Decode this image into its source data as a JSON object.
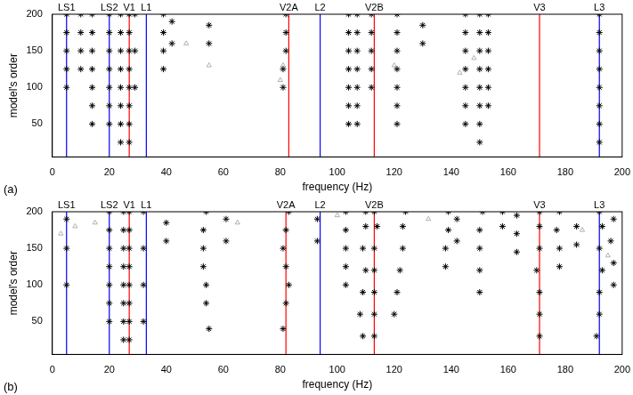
{
  "chart_data": [
    {
      "type": "scatter",
      "panel_label": "(a)",
      "x_label": "frequency (Hz)",
      "y_label": "model's order",
      "xlim": [
        0,
        200
      ],
      "xticks": [
        0,
        20,
        40,
        60,
        80,
        100,
        120,
        140,
        160,
        180,
        200
      ],
      "ylim": [
        5,
        200
      ],
      "yticks": [
        50,
        100,
        150,
        200
      ],
      "grid": false,
      "modes": [
        {
          "label": "LS1",
          "x": 5,
          "color": "#0000ff"
        },
        {
          "label": "LS2",
          "x": 20,
          "color": "#0000ff"
        },
        {
          "label": "V1",
          "x": 27,
          "color": "#ff0000"
        },
        {
          "label": "L1",
          "x": 33,
          "color": "#0000ff"
        },
        {
          "label": "V2A",
          "x": 83,
          "color": "#ff0000"
        },
        {
          "label": "L2",
          "x": 94,
          "color": "#0000ff"
        },
        {
          "label": "V2B",
          "x": 113,
          "color": "#ff0000"
        },
        {
          "label": "V3",
          "x": 171,
          "color": "#ff0000"
        },
        {
          "label": "L3",
          "x": 192,
          "color": "#0000ff"
        }
      ],
      "series": [
        {
          "color": "#000000",
          "marker": "star",
          "points": [
            [
              5,
              100
            ],
            [
              5,
              125
            ],
            [
              5,
              150
            ],
            [
              5,
              175
            ],
            [
              5,
              200
            ],
            [
              10,
              125
            ],
            [
              10,
              150
            ],
            [
              10,
              175
            ],
            [
              10,
              200
            ],
            [
              14,
              50
            ],
            [
              14,
              75
            ],
            [
              14,
              100
            ],
            [
              14,
              125
            ],
            [
              14,
              150
            ],
            [
              14,
              175
            ],
            [
              14,
              200
            ],
            [
              20,
              50
            ],
            [
              20,
              75
            ],
            [
              20,
              100
            ],
            [
              20,
              125
            ],
            [
              20,
              150
            ],
            [
              20,
              175
            ],
            [
              20,
              200
            ],
            [
              24,
              25
            ],
            [
              24,
              50
            ],
            [
              24,
              75
            ],
            [
              24,
              100
            ],
            [
              24,
              125
            ],
            [
              24,
              150
            ],
            [
              24,
              175
            ],
            [
              24,
              200
            ],
            [
              27,
              25
            ],
            [
              27,
              50
            ],
            [
              27,
              75
            ],
            [
              27,
              100
            ],
            [
              27,
              125
            ],
            [
              27,
              150
            ],
            [
              27,
              175
            ],
            [
              27,
              200
            ],
            [
              29,
              100
            ],
            [
              29,
              150
            ],
            [
              29,
              200
            ],
            [
              39,
              125
            ],
            [
              39,
              150
            ],
            [
              39,
              175
            ],
            [
              39,
              200
            ],
            [
              42,
              160
            ],
            [
              42,
              190
            ],
            [
              55,
              160
            ],
            [
              55,
              185
            ],
            [
              81,
              100
            ],
            [
              81,
              125
            ],
            [
              82,
              150
            ],
            [
              82,
              175
            ],
            [
              82,
              200
            ],
            [
              104,
              50
            ],
            [
              104,
              75
            ],
            [
              104,
              100
            ],
            [
              104,
              125
            ],
            [
              104,
              150
            ],
            [
              104,
              175
            ],
            [
              104,
              200
            ],
            [
              107,
              50
            ],
            [
              107,
              75
            ],
            [
              107,
              100
            ],
            [
              107,
              125
            ],
            [
              107,
              150
            ],
            [
              107,
              175
            ],
            [
              107,
              200
            ],
            [
              112,
              100
            ],
            [
              112,
              125
            ],
            [
              112,
              150
            ],
            [
              112,
              175
            ],
            [
              112,
              200
            ],
            [
              121,
              50
            ],
            [
              121,
              75
            ],
            [
              121,
              100
            ],
            [
              121,
              125
            ],
            [
              121,
              150
            ],
            [
              121,
              175
            ],
            [
              121,
              200
            ],
            [
              130,
              160
            ],
            [
              130,
              185
            ],
            [
              145,
              50
            ],
            [
              145,
              75
            ],
            [
              145,
              100
            ],
            [
              145,
              125
            ],
            [
              145,
              150
            ],
            [
              145,
              175
            ],
            [
              145,
              200
            ],
            [
              150,
              25
            ],
            [
              150,
              50
            ],
            [
              150,
              75
            ],
            [
              150,
              100
            ],
            [
              150,
              125
            ],
            [
              150,
              150
            ],
            [
              150,
              175
            ],
            [
              150,
              200
            ],
            [
              153,
              75
            ],
            [
              153,
              100
            ],
            [
              153,
              125
            ],
            [
              153,
              150
            ],
            [
              153,
              175
            ],
            [
              153,
              200
            ],
            [
              192,
              25
            ],
            [
              192,
              50
            ],
            [
              192,
              75
            ],
            [
              192,
              100
            ],
            [
              192,
              125
            ],
            [
              192,
              150
            ],
            [
              192,
              175
            ],
            [
              192,
              200
            ]
          ]
        },
        {
          "color": "#b0b0b0",
          "marker": "triangle",
          "points": [
            [
              80,
              110
            ],
            [
              81,
              130
            ],
            [
              143,
              120
            ],
            [
              148,
              140
            ],
            [
              55,
              130
            ],
            [
              120,
              130
            ],
            [
              47,
              160
            ]
          ]
        }
      ]
    },
    {
      "type": "scatter",
      "panel_label": "(b)",
      "x_label": "frequency (Hz)",
      "y_label": "model's order",
      "xlim": [
        0,
        200
      ],
      "xticks": [
        0,
        20,
        40,
        60,
        80,
        100,
        120,
        140,
        160,
        180,
        200
      ],
      "ylim": [
        5,
        200
      ],
      "yticks": [
        50,
        100,
        150,
        200
      ],
      "grid": false,
      "modes": [
        {
          "label": "LS1",
          "x": 5,
          "color": "#0000ff"
        },
        {
          "label": "LS2",
          "x": 20,
          "color": "#0000ff"
        },
        {
          "label": "V1",
          "x": 27,
          "color": "#ff0000"
        },
        {
          "label": "L1",
          "x": 33,
          "color": "#0000ff"
        },
        {
          "label": "V2A",
          "x": 82,
          "color": "#ff0000"
        },
        {
          "label": "L2",
          "x": 94,
          "color": "#0000ff"
        },
        {
          "label": "V2B",
          "x": 113,
          "color": "#ff0000"
        },
        {
          "label": "V3",
          "x": 171,
          "color": "#ff0000"
        },
        {
          "label": "L3",
          "x": 192,
          "color": "#0000ff"
        }
      ],
      "series": [
        {
          "color": "#000000",
          "marker": "star",
          "points": [
            [
              5,
              100
            ],
            [
              5,
              150
            ],
            [
              5,
              190
            ],
            [
              20,
              50
            ],
            [
              20,
              75
            ],
            [
              20,
              100
            ],
            [
              20,
              125
            ],
            [
              20,
              150
            ],
            [
              20,
              175
            ],
            [
              20,
              200
            ],
            [
              25,
              25
            ],
            [
              25,
              50
            ],
            [
              25,
              75
            ],
            [
              25,
              100
            ],
            [
              25,
              125
            ],
            [
              25,
              150
            ],
            [
              25,
              175
            ],
            [
              25,
              200
            ],
            [
              27,
              25
            ],
            [
              27,
              50
            ],
            [
              27,
              75
            ],
            [
              27,
              100
            ],
            [
              27,
              125
            ],
            [
              27,
              150
            ],
            [
              27,
              175
            ],
            [
              27,
              200
            ],
            [
              32,
              50
            ],
            [
              32,
              100
            ],
            [
              32,
              150
            ],
            [
              32,
              200
            ],
            [
              40,
              160
            ],
            [
              40,
              185
            ],
            [
              55,
              40
            ],
            [
              54,
              75
            ],
            [
              54,
              100
            ],
            [
              53,
              125
            ],
            [
              53,
              150
            ],
            [
              53,
              175
            ],
            [
              54,
              200
            ],
            [
              61,
              160
            ],
            [
              61,
              190
            ],
            [
              81,
              40
            ],
            [
              82,
              75
            ],
            [
              83,
              100
            ],
            [
              82,
              125
            ],
            [
              81,
              150
            ],
            [
              82,
              175
            ],
            [
              83,
              200
            ],
            [
              93,
              160
            ],
            [
              93,
              190
            ],
            [
              103,
              100
            ],
            [
              103,
              125
            ],
            [
              103,
              150
            ],
            [
              103,
              175
            ],
            [
              103,
              200
            ],
            [
              109,
              30
            ],
            [
              108,
              60
            ],
            [
              109,
              90
            ],
            [
              110,
              120
            ],
            [
              109,
              150
            ],
            [
              110,
              180
            ],
            [
              110,
              200
            ],
            [
              113,
              30
            ],
            [
              113,
              60
            ],
            [
              113,
              90
            ],
            [
              113,
              120
            ],
            [
              113,
              150
            ],
            [
              114,
              180
            ],
            [
              113,
              200
            ],
            [
              120,
              60
            ],
            [
              121,
              90
            ],
            [
              122,
              120
            ],
            [
              123,
              150
            ],
            [
              123,
              180
            ],
            [
              124,
              200
            ],
            [
              138,
              125
            ],
            [
              138,
              150
            ],
            [
              139,
              175
            ],
            [
              139,
              200
            ],
            [
              142,
              160
            ],
            [
              142,
              190
            ],
            [
              150,
              90
            ],
            [
              150,
              120
            ],
            [
              150,
              150
            ],
            [
              150,
              175
            ],
            [
              151,
              200
            ],
            [
              158,
              180
            ],
            [
              158,
              200
            ],
            [
              163,
              145
            ],
            [
              163,
              170
            ],
            [
              163,
              195
            ],
            [
              171,
              30
            ],
            [
              171,
              60
            ],
            [
              171,
              90
            ],
            [
              170,
              120
            ],
            [
              171,
              150
            ],
            [
              171,
              180
            ],
            [
              171,
              200
            ],
            [
              178,
              125
            ],
            [
              178,
              150
            ],
            [
              177,
              175
            ],
            [
              178,
              200
            ],
            [
              184,
              155
            ],
            [
              184,
              180
            ],
            [
              191,
              30
            ],
            [
              192,
              60
            ],
            [
              192,
              90
            ],
            [
              193,
              120
            ],
            [
              192,
              150
            ],
            [
              193,
              180
            ],
            [
              192,
              200
            ],
            [
              197,
              100
            ],
            [
              197,
              130
            ],
            [
              196,
              160
            ],
            [
              197,
              190
            ]
          ]
        },
        {
          "color": "#b0b0b0",
          "marker": "triangle",
          "points": [
            [
              3,
              170
            ],
            [
              8,
              180
            ],
            [
              15,
              185
            ],
            [
              65,
              185
            ],
            [
              100,
              195
            ],
            [
              132,
              190
            ],
            [
              186,
              175
            ],
            [
              195,
              140
            ]
          ]
        }
      ]
    }
  ]
}
